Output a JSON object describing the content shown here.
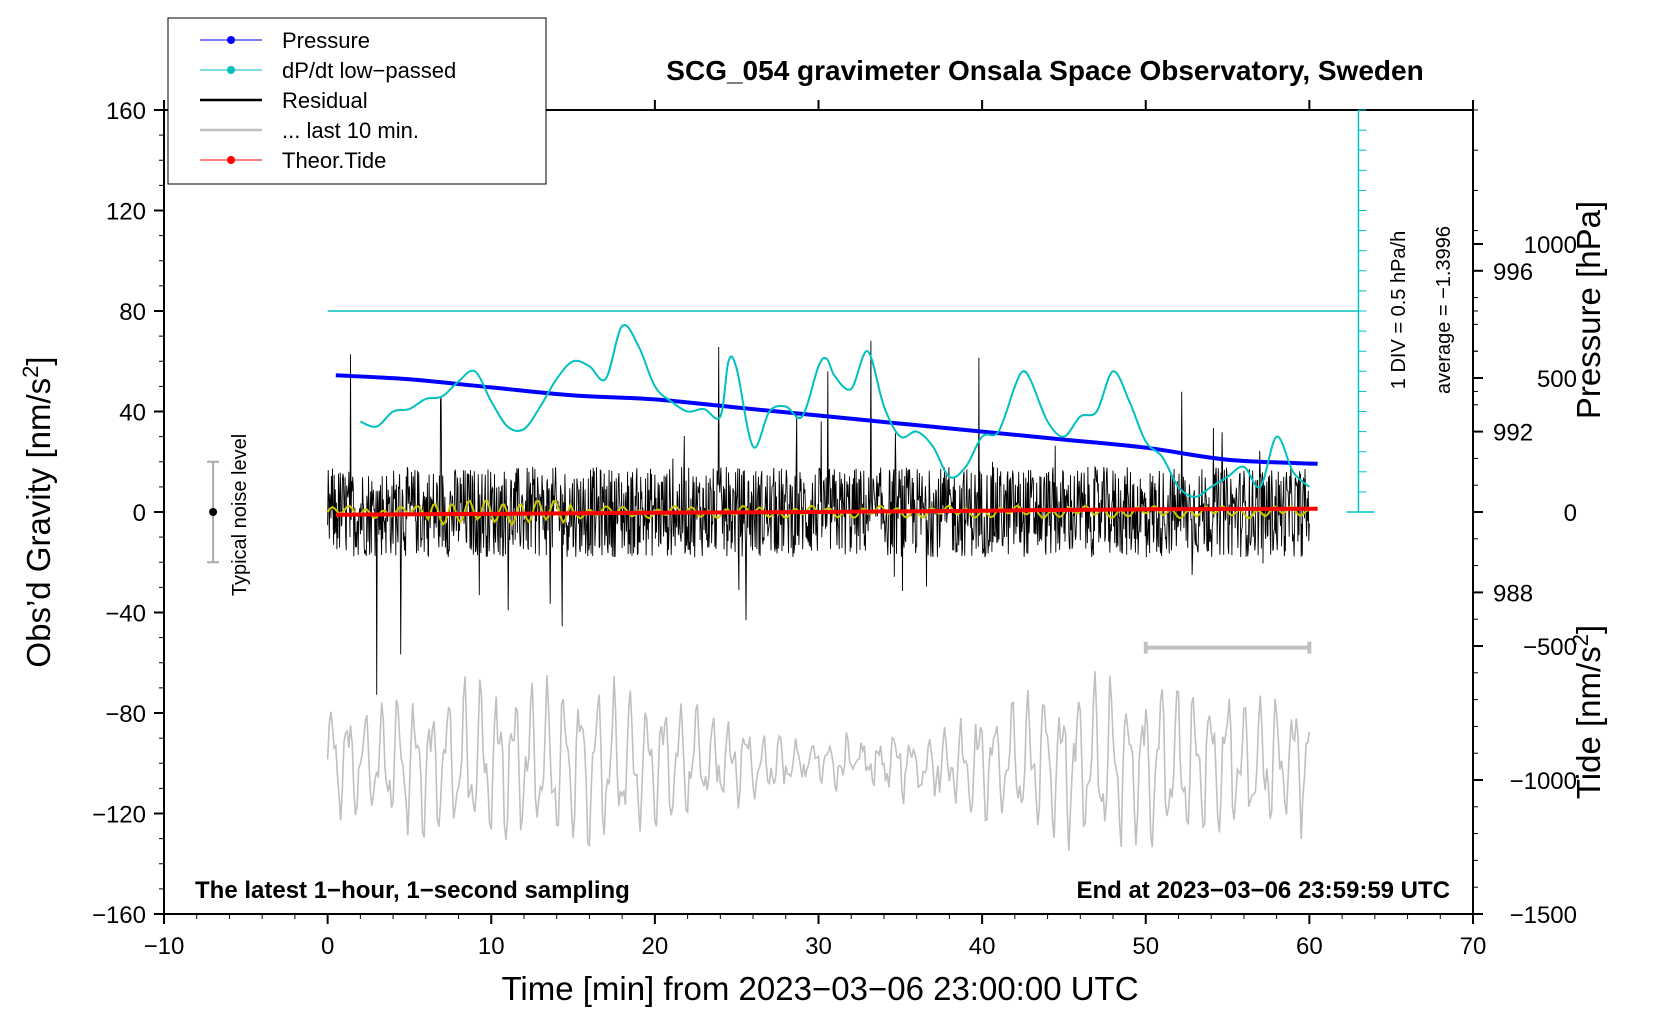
{
  "chart_data": {
    "type": "line",
    "title": "SCG_054 gravimeter Onsala Space Observatory, Sweden",
    "xlabel": "Time [min] from 2023−03−06 23:00:00 UTC",
    "ylabel_left": "Obs’d Gravity [nm/s",
    "ylabel_right_pressure": "Pressure [hPa]",
    "ylabel_right_tide": "Tide [nm/s",
    "superscript": "2",
    "closing_bracket": "]",
    "xlim": [
      -10,
      70
    ],
    "ylim_gravity": [
      -160,
      160
    ],
    "ylim_pressure": [
      980,
      1000
    ],
    "ylim_tide": [
      -1500,
      1500
    ],
    "x_ticks": [
      "−10",
      "0",
      "10",
      "20",
      "30",
      "40",
      "50",
      "60",
      "70"
    ],
    "x_tick_values": [
      -10,
      0,
      10,
      20,
      30,
      40,
      50,
      60,
      70
    ],
    "y_ticks": [
      "160",
      "120",
      "80",
      "40",
      "0",
      "−40",
      "−80",
      "−120",
      "−160"
    ],
    "y_tick_values": [
      160,
      120,
      80,
      40,
      0,
      -40,
      -80,
      -120,
      -160
    ],
    "pressure_ticks": [
      "996",
      "992",
      "988"
    ],
    "pressure_tick_values": [
      996,
      992,
      988
    ],
    "tide_ticks": [
      "1000",
      "500",
      "0",
      "−500",
      "−1000",
      "−1500"
    ],
    "tide_tick_values": [
      1000,
      500,
      0,
      -500,
      -1000,
      -1500
    ],
    "bottom_left_note": "The latest 1−hour, 1−second sampling",
    "bottom_right_note": "End at 2023−03−06 23:59:59 UTC",
    "noise_label": "Typical noise level",
    "noise_level": {
      "x": -7,
      "y": 0,
      "plus_minus": 20
    },
    "dpdt_scale": "1 DIV = 0.5 hPa/h",
    "dpdt_average": "average = −1.3996",
    "dpdt_baseline_gravity": 80,
    "legend": [
      {
        "label": "Pressure",
        "color": "#0000ff",
        "marker": true
      },
      {
        "label": "dP/dt low−passed",
        "color": "#00c0c0",
        "marker": true
      },
      {
        "label": "Residual",
        "color": "#000000",
        "marker": false
      },
      {
        "label": "... last 10 min.",
        "color": "#c0c0c0",
        "marker": false
      },
      {
        "label": "Theor.Tide",
        "color": "#ff0000",
        "marker": true
      }
    ],
    "series": [
      {
        "name": "Pressure",
        "color": "#0000ff",
        "axis": "pressure",
        "x": [
          0.5,
          5,
          10,
          15,
          20,
          25,
          30,
          35,
          40,
          45,
          50,
          55,
          60.5
        ],
        "values": [
          993.4,
          993.3,
          993.1,
          992.9,
          992.8,
          992.6,
          992.4,
          992.2,
          992.0,
          991.8,
          991.6,
          991.3,
          991.2
        ]
      },
      {
        "name": "dP/dt low−passed",
        "color": "#00c0c0",
        "axis": "gravity",
        "x": [
          2,
          3,
          4,
          5,
          6,
          7,
          8,
          9,
          10,
          11,
          12,
          13,
          14,
          15,
          16,
          17,
          18,
          19,
          20,
          21,
          22,
          23,
          24,
          24.5,
          25,
          26,
          27,
          28,
          29,
          30,
          30.5,
          31,
          32,
          33,
          34,
          35,
          36,
          37,
          38,
          39,
          40,
          41,
          42,
          42.5,
          43,
          44,
          45,
          46,
          47,
          48,
          49,
          50,
          51,
          52,
          53,
          54,
          55,
          56,
          57,
          58,
          59,
          60
        ],
        "values": [
          36,
          34,
          40,
          41,
          45,
          46,
          52,
          56,
          44,
          34,
          33,
          42,
          53,
          60,
          58,
          53,
          74,
          66,
          50,
          44,
          40,
          41,
          38,
          60,
          57,
          26,
          40,
          42,
          38,
          58,
          61,
          54,
          49,
          64,
          42,
          30,
          32,
          26,
          14,
          18,
          30,
          32,
          50,
          56,
          52,
          36,
          30,
          38,
          40,
          56,
          44,
          28,
          22,
          10,
          6,
          10,
          14,
          18,
          10,
          30,
          16,
          10
        ]
      },
      {
        "name": "Theor.Tide",
        "color": "#ff0000",
        "axis": "tide",
        "x": [
          0.5,
          10,
          20,
          30,
          40,
          50,
          60.5
        ],
        "values": [
          -10,
          -7,
          -3,
          0,
          5,
          10,
          12
        ]
      }
    ],
    "residual_description_values": {
      "amplitude_nm_s2": 45,
      "x_range": [
        0,
        60
      ]
    },
    "last10_range_minutes": [
      50,
      60
    ]
  }
}
